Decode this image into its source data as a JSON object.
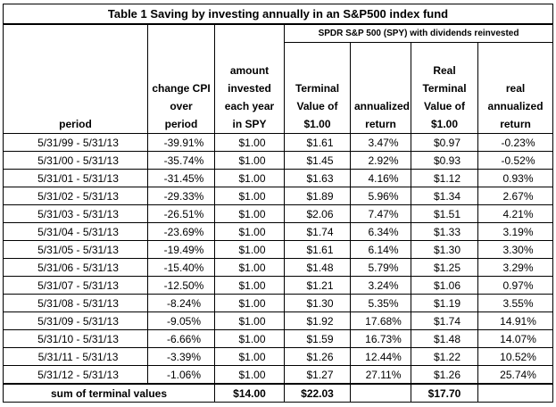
{
  "table": {
    "title": "Table 1    Saving by investing annually in an S&P500 index fund",
    "group_header": "SPDR S&P 500 (SPY) with dividends reinvested",
    "headers": [
      [
        "period"
      ],
      [
        "change CPI",
        "over",
        "period"
      ],
      [
        "amount",
        "invested",
        "each year",
        "in SPY"
      ],
      [
        "Terminal",
        "Value of",
        "$1.00"
      ],
      [
        "annualized",
        "return"
      ],
      [
        "Real",
        "Terminal",
        "Value of",
        "$1.00"
      ],
      [
        "real",
        "annualized",
        "return"
      ]
    ],
    "rows": [
      [
        "5/31/99 - 5/31/13",
        "-39.91%",
        "$1.00",
        "$1.61",
        "3.47%",
        "$0.97",
        "-0.23%"
      ],
      [
        "5/31/00 - 5/31/13",
        "-35.74%",
        "$1.00",
        "$1.45",
        "2.92%",
        "$0.93",
        "-0.52%"
      ],
      [
        "5/31/01 - 5/31/13",
        "-31.45%",
        "$1.00",
        "$1.63",
        "4.16%",
        "$1.12",
        "0.93%"
      ],
      [
        "5/31/02 - 5/31/13",
        "-29.33%",
        "$1.00",
        "$1.89",
        "5.96%",
        "$1.34",
        "2.67%"
      ],
      [
        "5/31/03 - 5/31/13",
        "-26.51%",
        "$1.00",
        "$2.06",
        "7.47%",
        "$1.51",
        "4.21%"
      ],
      [
        "5/31/04 - 5/31/13",
        "-23.69%",
        "$1.00",
        "$1.74",
        "6.34%",
        "$1.33",
        "3.19%"
      ],
      [
        "5/31/05 - 5/31/13",
        "-19.49%",
        "$1.00",
        "$1.61",
        "6.14%",
        "$1.30",
        "3.30%"
      ],
      [
        "5/31/06 - 5/31/13",
        "-15.40%",
        "$1.00",
        "$1.48",
        "5.79%",
        "$1.25",
        "3.29%"
      ],
      [
        "5/31/07 - 5/31/13",
        "-12.50%",
        "$1.00",
        "$1.21",
        "3.24%",
        "$1.06",
        "0.97%"
      ],
      [
        "5/31/08 - 5/31/13",
        "-8.24%",
        "$1.00",
        "$1.30",
        "5.35%",
        "$1.19",
        "3.55%"
      ],
      [
        "5/31/09 - 5/31/13",
        "-9.05%",
        "$1.00",
        "$1.92",
        "17.68%",
        "$1.74",
        "14.91%"
      ],
      [
        "5/31/10 - 5/31/13",
        "-6.66%",
        "$1.00",
        "$1.59",
        "16.73%",
        "$1.48",
        "14.07%"
      ],
      [
        "5/31/11 - 5/31/13",
        "-3.39%",
        "$1.00",
        "$1.26",
        "12.44%",
        "$1.22",
        "10.52%"
      ],
      [
        "5/31/12 - 5/31/13",
        "-1.06%",
        "$1.00",
        "$1.27",
        "27.11%",
        "$1.26",
        "25.74%"
      ]
    ],
    "footer": {
      "label": "sum of terminal values",
      "amount": "$14.00",
      "terminal": "$22.03",
      "real_terminal": "$17.70"
    }
  }
}
